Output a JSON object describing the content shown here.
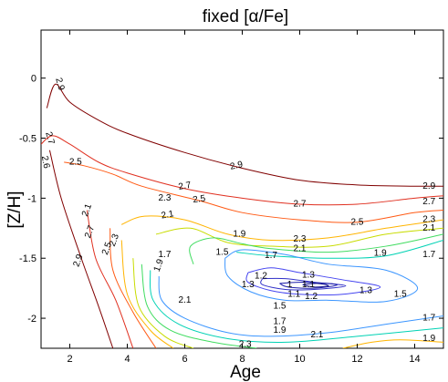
{
  "chart_data": {
    "type": "contour",
    "title": "fixed [α/Fe]",
    "xlabel": "Age",
    "ylabel": "[Z/H]",
    "xlim": [
      1,
      15
    ],
    "ylim": [
      -2.25,
      0.4
    ],
    "xticks": [
      2,
      4,
      6,
      8,
      10,
      12,
      14
    ],
    "yticks": [
      0,
      -0.5,
      -1,
      -1.5,
      -2
    ],
    "ytick_labels": [
      "0",
      "-0.5",
      "-1",
      "-1.5",
      "-2"
    ],
    "grid": false,
    "levels": [
      {
        "name": "2.9",
        "color": "#800000",
        "points": [
          [
            1.2,
            -0.25
          ],
          [
            1.5,
            -0.05
          ],
          [
            2,
            -0.2
          ],
          [
            3,
            -0.35
          ],
          [
            4,
            -0.46
          ],
          [
            6,
            -0.62
          ],
          [
            8,
            -0.75
          ],
          [
            10,
            -0.85
          ],
          [
            12,
            -0.89
          ],
          [
            14,
            -0.9
          ],
          [
            15,
            -0.9
          ]
        ]
      },
      {
        "name": "2.7",
        "color": "#e03020",
        "points": [
          [
            1,
            -0.55
          ],
          [
            1.4,
            -0.48
          ],
          [
            2,
            -0.55
          ],
          [
            3,
            -0.7
          ],
          [
            4,
            -0.79
          ],
          [
            6,
            -0.92
          ],
          [
            8,
            -1.0
          ],
          [
            10,
            -1.05
          ],
          [
            12,
            -1.05
          ],
          [
            14,
            -1.0
          ],
          [
            15,
            -0.98
          ]
        ]
      },
      {
        "name": "2.5",
        "color": "#ff5a14",
        "points": [
          [
            1.8,
            -0.7
          ],
          [
            2.5,
            -0.73
          ],
          [
            3.5,
            -0.8
          ],
          [
            4.5,
            -0.9
          ],
          [
            6.5,
            -1.02
          ],
          [
            8,
            -1.12
          ],
          [
            10,
            -1.18
          ],
          [
            12,
            -1.2
          ],
          [
            14,
            -1.12
          ],
          [
            15,
            -1.1
          ]
        ]
      },
      {
        "name": "2.3",
        "color": "#ffb400",
        "points": [
          [
            15,
            -1.18
          ],
          [
            13,
            -1.25
          ],
          [
            11,
            -1.33
          ],
          [
            9,
            -1.35
          ],
          [
            7.5,
            -1.3
          ],
          [
            6,
            -1.18
          ],
          [
            4.6,
            -1.15
          ],
          [
            3.8,
            -1.22
          ]
        ]
      },
      {
        "name": "2.1",
        "color": "#c8dc00",
        "points": [
          [
            15,
            -1.25
          ],
          [
            13,
            -1.3
          ],
          [
            11,
            -1.4
          ],
          [
            9,
            -1.4
          ],
          [
            7.5,
            -1.37
          ],
          [
            6.2,
            -1.25
          ],
          [
            5,
            -1.3
          ]
        ]
      },
      {
        "name": "1.9",
        "color": "#40dc60",
        "points": [
          [
            15,
            -1.3
          ],
          [
            13,
            -1.4
          ],
          [
            11,
            -1.45
          ],
          [
            9,
            -1.42
          ],
          [
            8,
            -1.38
          ],
          [
            7,
            -1.33
          ],
          [
            6.2,
            -1.4
          ],
          [
            6.3,
            -1.55
          ]
        ]
      },
      {
        "name": "1.7",
        "color": "#00d2b4",
        "points": [
          [
            15,
            -1.35
          ],
          [
            13,
            -1.48
          ],
          [
            11,
            -1.5
          ],
          [
            9,
            -1.48
          ],
          [
            7.8,
            -1.45
          ]
        ]
      },
      {
        "name": "1.5",
        "color": "#3c96ff",
        "points": [
          [
            7.4,
            -1.5
          ],
          [
            8,
            -1.43
          ],
          [
            9.5,
            -1.47
          ],
          [
            11,
            -1.55
          ],
          [
            13,
            -1.6
          ],
          [
            14.1,
            -1.75
          ],
          [
            13,
            -1.86
          ],
          [
            11,
            -1.85
          ],
          [
            9.5,
            -1.85
          ],
          [
            8.3,
            -1.78
          ],
          [
            7.5,
            -1.65
          ],
          [
            7.4,
            -1.5
          ]
        ]
      },
      {
        "name": "1.3",
        "color": "#4646f0",
        "points": [
          [
            8.2,
            -1.62
          ],
          [
            9,
            -1.58
          ],
          [
            10,
            -1.62
          ],
          [
            11.5,
            -1.68
          ],
          [
            12.8,
            -1.74
          ],
          [
            11.5,
            -1.8
          ],
          [
            10,
            -1.8
          ],
          [
            9,
            -1.77
          ],
          [
            8.2,
            -1.7
          ],
          [
            8.2,
            -1.62
          ]
        ]
      },
      {
        "name": "1.2",
        "color": "#3232c8",
        "points": [
          [
            8.7,
            -1.67
          ],
          [
            9.5,
            -1.67
          ],
          [
            10.5,
            -1.7
          ],
          [
            11.6,
            -1.73
          ],
          [
            10.5,
            -1.76
          ],
          [
            9.5,
            -1.76
          ],
          [
            8.7,
            -1.72
          ],
          [
            8.7,
            -1.67
          ]
        ]
      },
      {
        "name": "1.1",
        "color": "#1e1eaa",
        "points": [
          [
            9.3,
            -1.71
          ],
          [
            10.2,
            -1.7
          ],
          [
            11.3,
            -1.72
          ],
          [
            10.5,
            -1.75
          ],
          [
            9.6,
            -1.74
          ],
          [
            9.3,
            -1.71
          ]
        ]
      },
      {
        "name": "1",
        "color": "#14148c",
        "points": [
          [
            10.1,
            -1.72
          ],
          [
            10.6,
            -1.71
          ],
          [
            11,
            -1.73
          ],
          [
            10.5,
            -1.74
          ],
          [
            10.1,
            -1.72
          ]
        ]
      },
      {
        "name": "1.5",
        "color": "#3c96ff",
        "points": [
          [
            5.1,
            -1.65
          ],
          [
            5.2,
            -1.85
          ],
          [
            6,
            -2.0
          ],
          [
            7.5,
            -2.12
          ],
          [
            9,
            -2.15
          ],
          [
            11,
            -2.12
          ],
          [
            13,
            -2.05
          ],
          [
            15,
            -1.98
          ]
        ]
      },
      {
        "name": "1.7",
        "color": "#00d2b4",
        "points": [
          [
            4.8,
            -1.6
          ],
          [
            4.9,
            -1.85
          ],
          [
            5.8,
            -2.05
          ],
          [
            7.5,
            -2.17
          ],
          [
            9.5,
            -2.2
          ],
          [
            12,
            -2.15
          ],
          [
            15,
            -2.08
          ]
        ]
      },
      {
        "name": "1.9",
        "color": "#40dc60",
        "points": [
          [
            4.5,
            -1.55
          ],
          [
            4.7,
            -1.9
          ],
          [
            5.5,
            -2.1
          ],
          [
            7,
            -2.2
          ],
          [
            8.5,
            -2.25
          ]
        ]
      },
      {
        "name": "2.1",
        "color": "#c8dc00",
        "points": [
          [
            4.2,
            -1.5
          ],
          [
            4.4,
            -1.9
          ],
          [
            5.3,
            -2.15
          ],
          [
            6.3,
            -2.25
          ]
        ]
      },
      {
        "name": "2.3",
        "color": "#ffb400",
        "points": [
          [
            3.8,
            -1.35
          ],
          [
            4.0,
            -1.8
          ],
          [
            4.8,
            -2.1
          ],
          [
            5.6,
            -2.25
          ]
        ]
      },
      {
        "name": "2.5",
        "color": "#ff5a14",
        "points": [
          [
            3.4,
            -1.25
          ],
          [
            3.5,
            -1.6
          ],
          [
            4.2,
            -1.95
          ],
          [
            5.0,
            -2.25
          ]
        ]
      },
      {
        "name": "2.7",
        "color": "#e03020",
        "points": [
          [
            2.6,
            -1.1
          ],
          [
            2.9,
            -1.5
          ],
          [
            3.6,
            -1.85
          ],
          [
            4.2,
            -2.25
          ]
        ]
      },
      {
        "name": "2.9",
        "color": "#800000",
        "points": [
          [
            1.3,
            -0.6
          ],
          [
            1.7,
            -1.0
          ],
          [
            2.4,
            -1.5
          ],
          [
            3.0,
            -1.9
          ],
          [
            3.5,
            -2.25
          ]
        ]
      },
      {
        "name": "2.3",
        "color": "#ffb400",
        "points": [
          [
            11.5,
            -2.25
          ],
          [
            12.5,
            -2.2
          ],
          [
            13.5,
            -2.18
          ],
          [
            15,
            -2.2
          ]
        ]
      }
    ],
    "labels": [
      {
        "text": "2.9",
        "x": 1.65,
        "y": -0.05,
        "angle": 75
      },
      {
        "text": "2.7",
        "x": 1.3,
        "y": -0.5,
        "angle": 75
      },
      {
        "text": "2.6",
        "x": 1.15,
        "y": -0.7,
        "angle": 80
      },
      {
        "text": "2.5",
        "x": 2.2,
        "y": -0.7,
        "angle": 0
      },
      {
        "text": "2.9",
        "x": 7.8,
        "y": -0.73,
        "angle": -12
      },
      {
        "text": "2.7",
        "x": 6.0,
        "y": -0.9,
        "angle": -10
      },
      {
        "text": "2.9",
        "x": 14.5,
        "y": -0.9,
        "angle": 0
      },
      {
        "text": "2.7",
        "x": 14.5,
        "y": -1.03,
        "angle": 0
      },
      {
        "text": "2.7",
        "x": 10.0,
        "y": -1.05,
        "angle": 0
      },
      {
        "text": "2.5",
        "x": 6.5,
        "y": -1.01,
        "angle": -8
      },
      {
        "text": "2.3",
        "x": 5.3,
        "y": -1.0,
        "angle": 0
      },
      {
        "text": "2.5",
        "x": 12.0,
        "y": -1.2,
        "angle": 0
      },
      {
        "text": "2.1",
        "x": 5.4,
        "y": -1.14,
        "angle": -10
      },
      {
        "text": "2.3",
        "x": 14.5,
        "y": -1.18,
        "angle": 0
      },
      {
        "text": "2.1",
        "x": 14.5,
        "y": -1.25,
        "angle": 0
      },
      {
        "text": "1.9",
        "x": 7.9,
        "y": -1.3,
        "angle": 0
      },
      {
        "text": "2.3",
        "x": 10.0,
        "y": -1.34,
        "angle": 0
      },
      {
        "text": "2.1",
        "x": 10.0,
        "y": -1.42,
        "angle": 0
      },
      {
        "text": "1.7",
        "x": 9.0,
        "y": -1.48,
        "angle": 0
      },
      {
        "text": "1.5",
        "x": 7.3,
        "y": -1.45,
        "angle": 0
      },
      {
        "text": "1.9",
        "x": 12.8,
        "y": -1.46,
        "angle": 0
      },
      {
        "text": "1.7",
        "x": 14.5,
        "y": -1.47,
        "angle": 0
      },
      {
        "text": "1.7",
        "x": 5.3,
        "y": -1.47,
        "angle": 0
      },
      {
        "text": "1.9",
        "x": 5.1,
        "y": -1.56,
        "angle": -70
      },
      {
        "text": "2.1",
        "x": 2.6,
        "y": -1.1,
        "angle": -70
      },
      {
        "text": "2.3",
        "x": 3.55,
        "y": -1.35,
        "angle": -70
      },
      {
        "text": "2.5",
        "x": 3.3,
        "y": -1.42,
        "angle": -70
      },
      {
        "text": "2.7",
        "x": 2.7,
        "y": -1.28,
        "angle": -70
      },
      {
        "text": "2.9",
        "x": 2.3,
        "y": -1.52,
        "angle": -70
      },
      {
        "text": "1.2",
        "x": 8.65,
        "y": -1.65,
        "angle": 0
      },
      {
        "text": "1.3",
        "x": 10.3,
        "y": -1.64,
        "angle": 0
      },
      {
        "text": "1.3",
        "x": 8.2,
        "y": -1.72,
        "angle": 0
      },
      {
        "text": "1",
        "x": 9.65,
        "y": -1.72,
        "angle": 0
      },
      {
        "text": "1.1",
        "x": 10.3,
        "y": -1.72,
        "angle": 0
      },
      {
        "text": "1.3",
        "x": 12.3,
        "y": -1.77,
        "angle": 0
      },
      {
        "text": "1.5",
        "x": 13.5,
        "y": -1.8,
        "angle": 0
      },
      {
        "text": "1.1",
        "x": 9.8,
        "y": -1.8,
        "angle": 0
      },
      {
        "text": "1.2",
        "x": 10.4,
        "y": -1.82,
        "angle": 0
      },
      {
        "text": "2.1",
        "x": 6.0,
        "y": -1.85,
        "angle": 0
      },
      {
        "text": "1.5",
        "x": 9.3,
        "y": -1.9,
        "angle": 0
      },
      {
        "text": "1.7",
        "x": 9.3,
        "y": -2.03,
        "angle": 0
      },
      {
        "text": "1.9",
        "x": 9.3,
        "y": -2.1,
        "angle": 0
      },
      {
        "text": "1.7",
        "x": 14.5,
        "y": -2.0,
        "angle": 0
      },
      {
        "text": "2.1",
        "x": 10.6,
        "y": -2.14,
        "angle": 0
      },
      {
        "text": "1.9",
        "x": 14.5,
        "y": -2.17,
        "angle": 0
      },
      {
        "text": "2.3",
        "x": 8.1,
        "y": -2.22,
        "angle": 0
      },
      {
        "text": "2.5",
        "x": 7.6,
        "y": -2.27,
        "angle": 0
      },
      {
        "text": "2.7",
        "x": 6.0,
        "y": -2.27,
        "angle": 0
      }
    ]
  }
}
